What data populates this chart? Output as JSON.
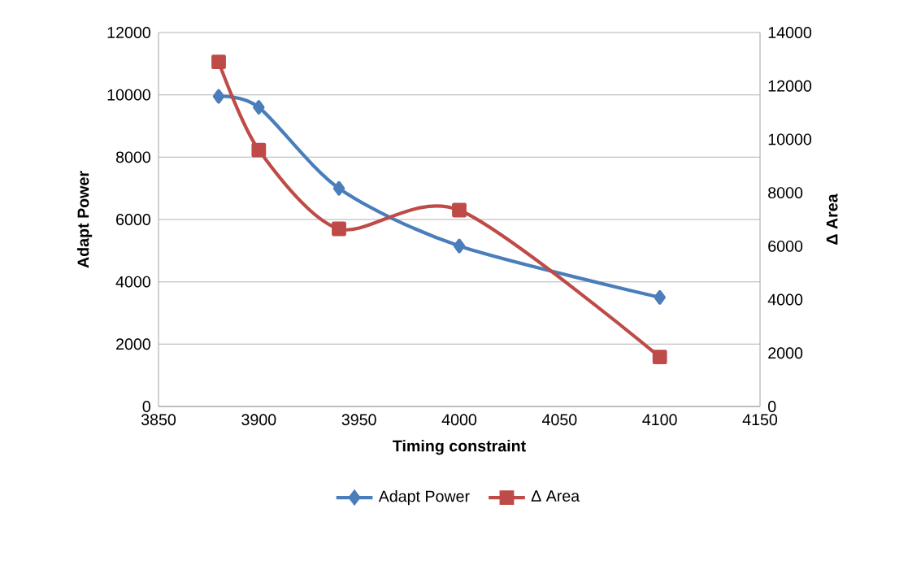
{
  "chart_data": {
    "type": "line",
    "xlabel": "Timing constraint",
    "ylabel": "Adapt Power",
    "y2label": "Δ Area",
    "x": [
      3880,
      3900,
      3940,
      4000,
      4100
    ],
    "series": [
      {
        "name": "Adapt Power",
        "color": "#4a7ebb",
        "values": [
          9950,
          9600,
          7000,
          5150,
          3500
        ],
        "marker": "diamond"
      },
      {
        "name": "Δ Area",
        "color": "#be4b48",
        "values": [
          12900,
          9600,
          6650,
          7350,
          1850
        ],
        "marker": "square",
        "axis": "y2"
      }
    ],
    "xlim": [
      3850,
      4150
    ],
    "xticks": [
      3850,
      3900,
      3950,
      4000,
      4050,
      4100,
      4150
    ],
    "ylim": [
      0,
      12000
    ],
    "yticks": [
      0,
      2000,
      4000,
      6000,
      8000,
      10000,
      12000
    ],
    "y2lim": [
      0,
      14000
    ],
    "y2ticks": [
      0,
      2000,
      4000,
      6000,
      8000,
      10000,
      12000,
      14000
    ],
    "grid": "y",
    "legend": "bottom",
    "line_style": "solid"
  }
}
